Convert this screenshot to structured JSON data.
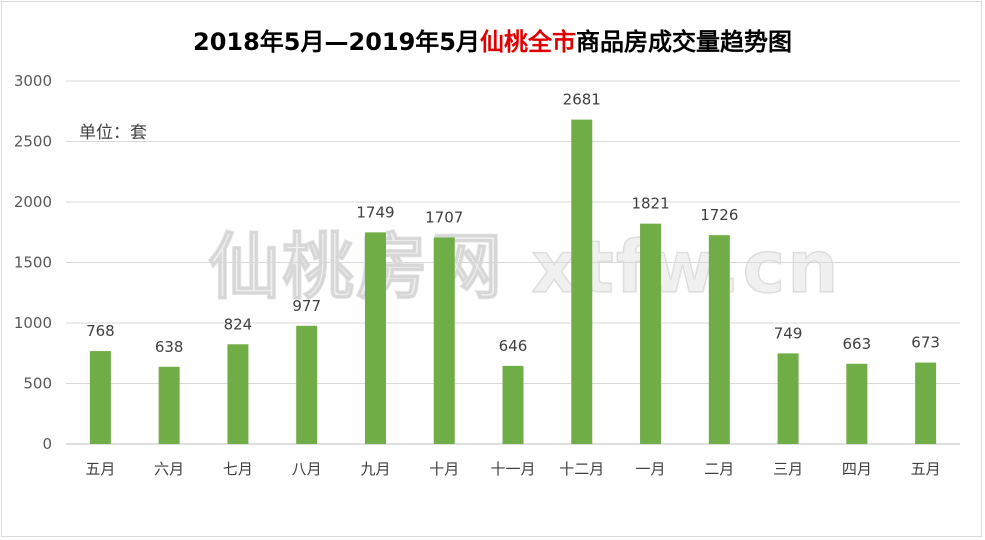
{
  "title": {
    "part1": "2018年5月—2019年5月",
    "part2": "仙桃全市",
    "part3": "商品房成交量趋势图"
  },
  "unit_label": "单位：套",
  "watermark": "仙桃房网 xtfw.cn",
  "colors": {
    "bar": "#70ad47",
    "grid": "#d9d9d9",
    "title_highlight": "#e00000"
  },
  "chart_data": {
    "type": "bar",
    "categories": [
      "五月",
      "六月",
      "七月",
      "八月",
      "九月",
      "十月",
      "十一月",
      "十二月",
      "一月",
      "二月",
      "三月",
      "四月",
      "五月"
    ],
    "values": [
      768,
      638,
      824,
      977,
      1749,
      1707,
      646,
      2681,
      1821,
      1726,
      749,
      663,
      673
    ],
    "yticks": [
      "0",
      "500",
      "1000",
      "1500",
      "2000",
      "2500",
      "3000"
    ],
    "ylim": [
      0,
      3000
    ],
    "grid": true,
    "legend": "none"
  }
}
